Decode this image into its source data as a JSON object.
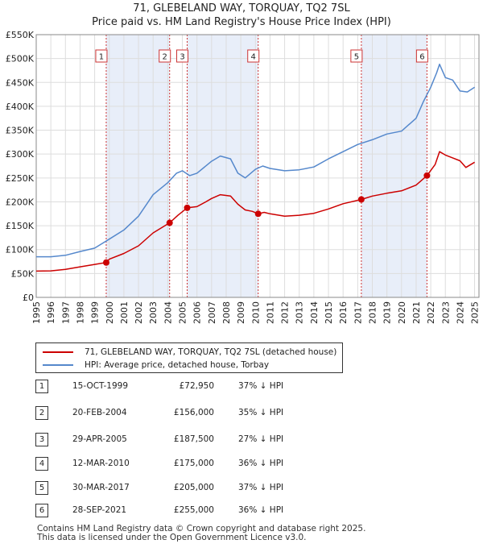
{
  "title_line1": "71, GLEBELAND WAY, TORQUAY, TQ2 7SL",
  "title_line2": "Price paid vs. HM Land Registry's House Price Index (HPI)",
  "chart_data": {
    "type": "line",
    "title": "71, GLEBELAND WAY, TORQUAY, TQ2 7SL — Price paid vs. HM Land Registry's House Price Index (HPI)",
    "xlim": [
      1995,
      2025.3
    ],
    "ylim": [
      0,
      550000
    ],
    "x_ticks": [
      "1995",
      "1996",
      "1997",
      "1998",
      "1999",
      "2000",
      "2001",
      "2002",
      "2003",
      "2004",
      "2005",
      "2006",
      "2007",
      "2008",
      "2009",
      "2010",
      "2011",
      "2012",
      "2013",
      "2014",
      "2015",
      "2016",
      "2017",
      "2018",
      "2019",
      "2020",
      "2021",
      "2022",
      "2023",
      "2024",
      "2025"
    ],
    "y_ticks": [
      {
        "value": 0,
        "label": "£0"
      },
      {
        "value": 50000,
        "label": "£50K"
      },
      {
        "value": 100000,
        "label": "£100K"
      },
      {
        "value": 150000,
        "label": "£150K"
      },
      {
        "value": 200000,
        "label": "£200K"
      },
      {
        "value": 250000,
        "label": "£250K"
      },
      {
        "value": 300000,
        "label": "£300K"
      },
      {
        "value": 350000,
        "label": "£350K"
      },
      {
        "value": 400000,
        "label": "£400K"
      },
      {
        "value": 450000,
        "label": "£450K"
      },
      {
        "value": 500000,
        "label": "£500K"
      },
      {
        "value": 550000,
        "label": "£550K"
      }
    ],
    "shaded_periods": [
      [
        1999.79,
        2004.13
      ],
      [
        2005.33,
        2010.19
      ],
      [
        2017.25,
        2021.74
      ]
    ],
    "sale_markers": [
      {
        "label": "1",
        "x": 1999.79,
        "y": 72950
      },
      {
        "label": "2",
        "x": 2004.13,
        "y": 156000
      },
      {
        "label": "3",
        "x": 2005.33,
        "y": 187500
      },
      {
        "label": "4",
        "x": 2010.19,
        "y": 175000
      },
      {
        "label": "5",
        "x": 2017.25,
        "y": 205000
      },
      {
        "label": "6",
        "x": 2021.74,
        "y": 255000
      }
    ],
    "series": [
      {
        "name": "71, GLEBELAND WAY, TORQUAY, TQ2 7SL (detached house)",
        "color": "#cc0000",
        "points": [
          [
            1995,
            55000
          ],
          [
            1996,
            55500
          ],
          [
            1997,
            58500
          ],
          [
            1998,
            64000
          ],
          [
            1999,
            69000
          ],
          [
            1999.79,
            72950
          ],
          [
            2000,
            80000
          ],
          [
            2001,
            92000
          ],
          [
            2002,
            108000
          ],
          [
            2003,
            135000
          ],
          [
            2004.13,
            156000
          ],
          [
            2004.7,
            172000
          ],
          [
            2005.33,
            187500
          ],
          [
            2006,
            190000
          ],
          [
            2006.6,
            200000
          ],
          [
            2007,
            207000
          ],
          [
            2007.6,
            215000
          ],
          [
            2008.3,
            212000
          ],
          [
            2008.8,
            195000
          ],
          [
            2009.3,
            183000
          ],
          [
            2009.8,
            180000
          ],
          [
            2010.19,
            175000
          ],
          [
            2010.6,
            178000
          ],
          [
            2011,
            175000
          ],
          [
            2012,
            170000
          ],
          [
            2013,
            172000
          ],
          [
            2014,
            176000
          ],
          [
            2015,
            185000
          ],
          [
            2016,
            196000
          ],
          [
            2017.25,
            205000
          ],
          [
            2018,
            212000
          ],
          [
            2019,
            218000
          ],
          [
            2020,
            223000
          ],
          [
            2021,
            235000
          ],
          [
            2021.74,
            255000
          ],
          [
            2022.3,
            278000
          ],
          [
            2022.6,
            305000
          ],
          [
            2023,
            298000
          ],
          [
            2023.5,
            292000
          ],
          [
            2024,
            286000
          ],
          [
            2024.4,
            272000
          ],
          [
            2025,
            283000
          ]
        ]
      },
      {
        "name": "HPI: Average price, detached house, Torbay",
        "color": "#5588cc",
        "points": [
          [
            1995,
            85000
          ],
          [
            1996,
            85000
          ],
          [
            1997,
            88000
          ],
          [
            1998,
            96000
          ],
          [
            1999,
            103000
          ],
          [
            2000,
            122000
          ],
          [
            2001,
            141000
          ],
          [
            2002,
            170000
          ],
          [
            2003,
            215000
          ],
          [
            2004,
            240000
          ],
          [
            2004.6,
            260000
          ],
          [
            2005,
            265000
          ],
          [
            2005.5,
            255000
          ],
          [
            2006,
            260000
          ],
          [
            2007,
            285000
          ],
          [
            2007.6,
            296000
          ],
          [
            2008.3,
            290000
          ],
          [
            2008.8,
            260000
          ],
          [
            2009.3,
            250000
          ],
          [
            2010,
            268000
          ],
          [
            2010.5,
            275000
          ],
          [
            2011,
            270000
          ],
          [
            2012,
            265000
          ],
          [
            2013,
            267000
          ],
          [
            2014,
            273000
          ],
          [
            2015,
            290000
          ],
          [
            2016,
            305000
          ],
          [
            2017,
            320000
          ],
          [
            2018,
            330000
          ],
          [
            2019,
            342000
          ],
          [
            2020,
            348000
          ],
          [
            2021,
            375000
          ],
          [
            2021.5,
            410000
          ],
          [
            2022,
            440000
          ],
          [
            2022.4,
            470000
          ],
          [
            2022.6,
            488000
          ],
          [
            2023,
            460000
          ],
          [
            2023.5,
            455000
          ],
          [
            2024,
            432000
          ],
          [
            2024.5,
            430000
          ],
          [
            2025,
            440000
          ]
        ]
      }
    ]
  },
  "legend": {
    "property_label": "71, GLEBELAND WAY, TORQUAY, TQ2 7SL (detached house)",
    "hpi_label": "HPI: Average price, detached house, Torbay",
    "property_color": "#cc0000",
    "hpi_color": "#5588cc"
  },
  "sales": [
    {
      "num": "1",
      "date": "15-OCT-1999",
      "price": "£72,950",
      "diff": "37% ↓ HPI"
    },
    {
      "num": "2",
      "date": "20-FEB-2004",
      "price": "£156,000",
      "diff": "35% ↓ HPI"
    },
    {
      "num": "3",
      "date": "29-APR-2005",
      "price": "£187,500",
      "diff": "27% ↓ HPI"
    },
    {
      "num": "4",
      "date": "12-MAR-2010",
      "price": "£175,000",
      "diff": "36% ↓ HPI"
    },
    {
      "num": "5",
      "date": "30-MAR-2017",
      "price": "£205,000",
      "diff": "37% ↓ HPI"
    },
    {
      "num": "6",
      "date": "28-SEP-2021",
      "price": "£255,000",
      "diff": "36% ↓ HPI"
    }
  ],
  "footer_line1": "Contains HM Land Registry data © Crown copyright and database right 2025.",
  "footer_line2": "This data is licensed under the Open Government Licence v3.0."
}
